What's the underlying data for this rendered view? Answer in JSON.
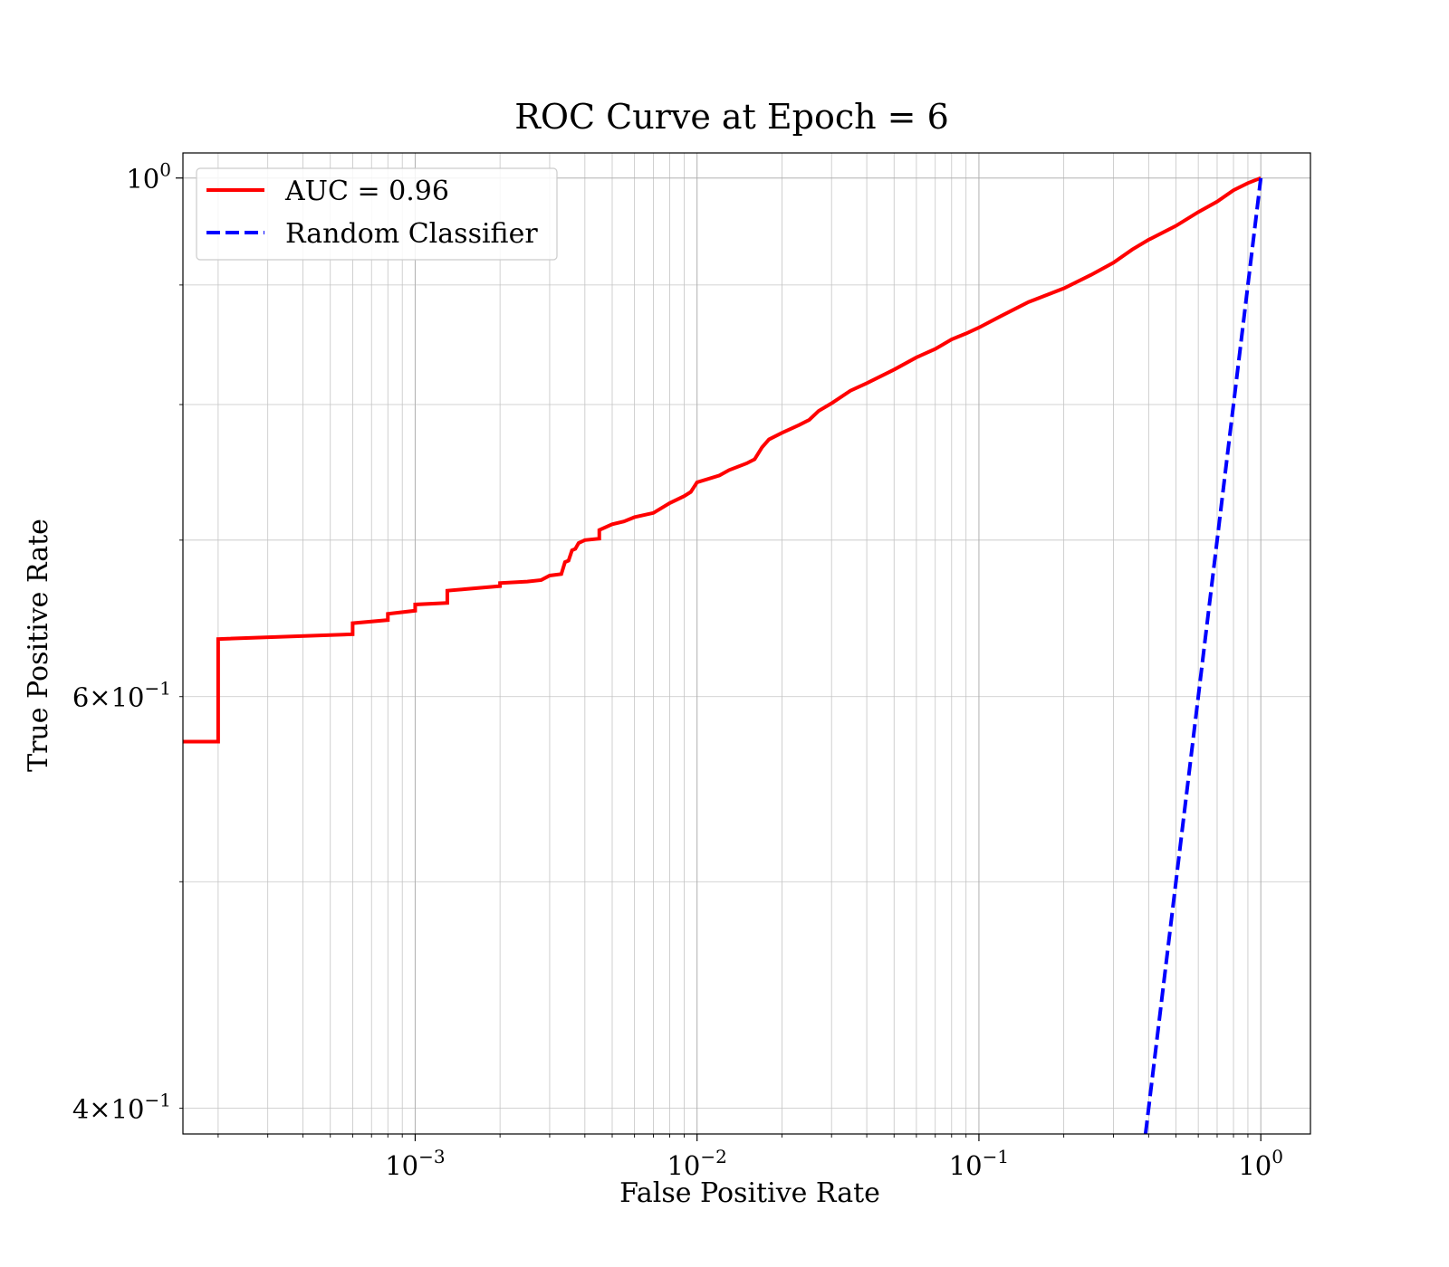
{
  "chart_data": {
    "type": "line",
    "title": "ROC Curve at Epoch = 6",
    "xlabel": "False Positive Rate",
    "ylabel": "True Positive Rate",
    "xscale": "log",
    "yscale": "log",
    "xlim": [
      0.00015,
      1.5
    ],
    "ylim": [
      0.39,
      1.025
    ],
    "grid": "on (major and minor)",
    "legend_position": "top-left",
    "x_tick_labels": [
      {
        "value": 0.001,
        "base": "10",
        "exp": "−3"
      },
      {
        "value": 0.01,
        "base": "10",
        "exp": "−2"
      },
      {
        "value": 0.1,
        "base": "10",
        "exp": "−1"
      },
      {
        "value": 1,
        "base": "10",
        "exp": "0"
      }
    ],
    "y_tick_labels": [
      {
        "value": 1,
        "base": "10",
        "exp": "0"
      },
      {
        "value": 0.6,
        "base": "6×10",
        "exp": "−1"
      },
      {
        "value": 0.4,
        "base": "4×10",
        "exp": "−1"
      }
    ],
    "series": [
      {
        "name": "AUC = 0.96",
        "color": "#ff0000",
        "style": "solid",
        "x": [
          0.00015,
          0.0002,
          0.0002,
          0.0006,
          0.0006,
          0.0008,
          0.0008,
          0.001,
          0.001,
          0.0013,
          0.0013,
          0.0015,
          0.002,
          0.002,
          0.0025,
          0.0028,
          0.003,
          0.003,
          0.0033,
          0.0034,
          0.0035,
          0.0036,
          0.0037,
          0.0038,
          0.004,
          0.0045,
          0.0045,
          0.005,
          0.0055,
          0.006,
          0.007,
          0.008,
          0.009,
          0.0095,
          0.01,
          0.012,
          0.013,
          0.015,
          0.016,
          0.017,
          0.018,
          0.02,
          0.023,
          0.025,
          0.027,
          0.03,
          0.035,
          0.04,
          0.05,
          0.06,
          0.07,
          0.08,
          0.09,
          0.1,
          0.12,
          0.15,
          0.2,
          0.25,
          0.3,
          0.35,
          0.4,
          0.5,
          0.6,
          0.7,
          0.8,
          0.9,
          1.0
        ],
        "y": [
          0.574,
          0.574,
          0.635,
          0.638,
          0.645,
          0.647,
          0.651,
          0.653,
          0.657,
          0.658,
          0.666,
          0.667,
          0.669,
          0.671,
          0.672,
          0.673,
          0.676,
          0.676,
          0.677,
          0.685,
          0.686,
          0.693,
          0.694,
          0.698,
          0.7,
          0.701,
          0.707,
          0.711,
          0.713,
          0.716,
          0.719,
          0.726,
          0.731,
          0.734,
          0.741,
          0.746,
          0.75,
          0.755,
          0.758,
          0.767,
          0.773,
          0.778,
          0.784,
          0.788,
          0.795,
          0.801,
          0.811,
          0.817,
          0.828,
          0.838,
          0.845,
          0.853,
          0.858,
          0.863,
          0.873,
          0.885,
          0.897,
          0.909,
          0.92,
          0.932,
          0.941,
          0.954,
          0.967,
          0.977,
          0.988,
          0.995,
          1.0
        ]
      },
      {
        "name": "Random Classifier",
        "color": "#0000ff",
        "style": "dashed",
        "x": [
          0.39,
          1.0
        ],
        "y": [
          0.39,
          1.0
        ]
      }
    ]
  }
}
